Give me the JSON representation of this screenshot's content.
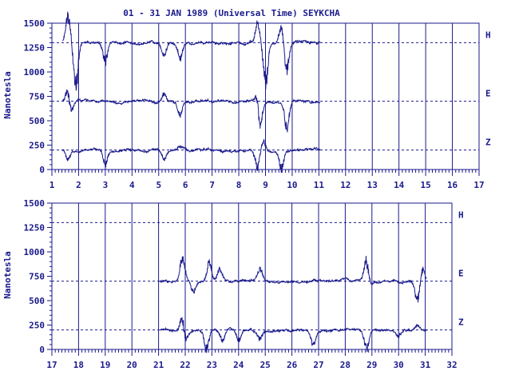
{
  "chart_data": [
    {
      "type": "line",
      "title": "01 - 31 JAN 1989 (Universal Time) SEYKCHA",
      "ylabel": "Nanotesla",
      "xlim": [
        1,
        17
      ],
      "ylim": [
        0,
        1500
      ],
      "x_ticks": [
        1,
        2,
        3,
        4,
        5,
        6,
        7,
        8,
        9,
        10,
        11,
        12,
        13,
        14,
        15,
        16,
        17
      ],
      "y_ticks": [
        0,
        250,
        500,
        750,
        1000,
        1250,
        1500
      ],
      "data_start_day": 1.4,
      "data_end_day": 11.05,
      "series": [
        {
          "name": "H",
          "baseline": 1300,
          "disturbances": [
            {
              "day": 1.6,
              "value": 1620
            },
            {
              "day": 1.9,
              "value": 720
            },
            {
              "day": 3.0,
              "value": 1050
            },
            {
              "day": 5.2,
              "value": 1150
            },
            {
              "day": 5.8,
              "value": 1100
            },
            {
              "day": 8.7,
              "value": 1550
            },
            {
              "day": 9.0,
              "value": 800
            },
            {
              "day": 9.8,
              "value": 950
            },
            {
              "day": 9.6,
              "value": 1500
            }
          ]
        },
        {
          "name": "E",
          "baseline": 700,
          "disturbances": [
            {
              "day": 1.6,
              "value": 900
            },
            {
              "day": 1.7,
              "value": 520
            },
            {
              "day": 5.2,
              "value": 800
            },
            {
              "day": 5.8,
              "value": 540
            },
            {
              "day": 8.7,
              "value": 820
            },
            {
              "day": 8.8,
              "value": 380
            },
            {
              "day": 9.8,
              "value": 350
            }
          ]
        },
        {
          "name": "Z",
          "baseline": 200,
          "disturbances": [
            {
              "day": 1.6,
              "value": 60
            },
            {
              "day": 3.0,
              "value": 20
            },
            {
              "day": 5.2,
              "value": 80
            },
            {
              "day": 5.8,
              "value": 250
            },
            {
              "day": 8.7,
              "value": -30
            },
            {
              "day": 8.9,
              "value": 330
            },
            {
              "day": 9.6,
              "value": -30
            }
          ]
        }
      ]
    },
    {
      "type": "line",
      "title": "",
      "ylabel": "Nanotesla",
      "xlim": [
        17,
        32
      ],
      "ylim": [
        0,
        1500
      ],
      "x_ticks": [
        17,
        18,
        19,
        20,
        21,
        22,
        23,
        24,
        25,
        26,
        27,
        28,
        29,
        30,
        31,
        32
      ],
      "y_ticks": [
        0,
        250,
        500,
        750,
        1000,
        1250,
        1500
      ],
      "data_start_day": 21.05,
      "data_end_day": 31.05,
      "series": [
        {
          "name": "H",
          "baseline": 1300,
          "disturbances": []
        },
        {
          "name": "E",
          "baseline": 700,
          "disturbances": [
            {
              "day": 21.9,
              "value": 1000
            },
            {
              "day": 22.3,
              "value": 560
            },
            {
              "day": 22.9,
              "value": 950
            },
            {
              "day": 23.3,
              "value": 850
            },
            {
              "day": 24.8,
              "value": 850
            },
            {
              "day": 28.8,
              "value": 1000
            },
            {
              "day": 28.9,
              "value": 600
            },
            {
              "day": 30.7,
              "value": 450
            },
            {
              "day": 30.9,
              "value": 850
            }
          ]
        },
        {
          "name": "Z",
          "baseline": 200,
          "disturbances": [
            {
              "day": 21.9,
              "value": 420
            },
            {
              "day": 22.0,
              "value": 50
            },
            {
              "day": 22.8,
              "value": -40
            },
            {
              "day": 23.4,
              "value": 80
            },
            {
              "day": 24.0,
              "value": 80
            },
            {
              "day": 24.8,
              "value": 80
            },
            {
              "day": 26.8,
              "value": 20
            },
            {
              "day": 28.8,
              "value": -40
            },
            {
              "day": 30.0,
              "value": 120
            },
            {
              "day": 30.7,
              "value": 280
            }
          ]
        }
      ]
    }
  ]
}
